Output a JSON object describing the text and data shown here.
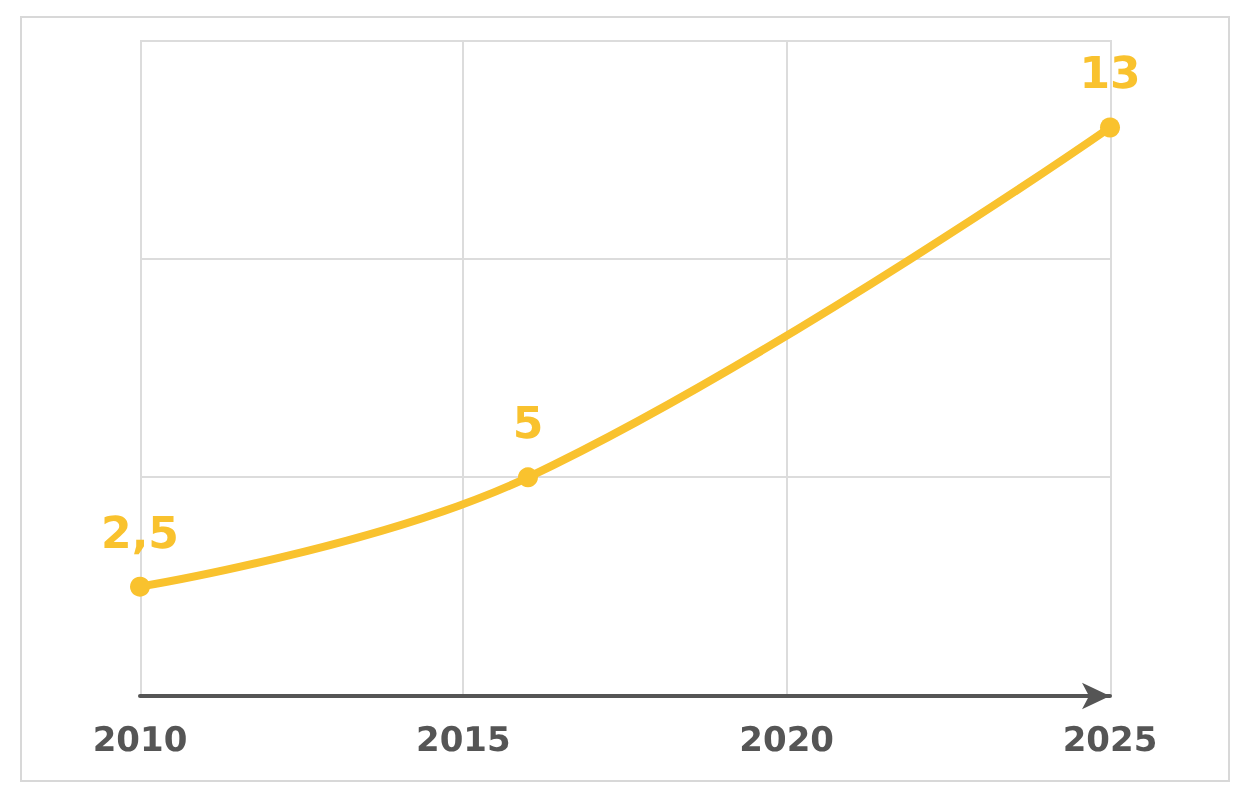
{
  "chart_data": {
    "type": "line",
    "x": [
      2010,
      2016,
      2025
    ],
    "series": [
      {
        "color": "#f9c22e",
        "values": [
          2.5,
          5,
          13
        ],
        "value_labels": [
          "2,5",
          "5",
          "13"
        ]
      }
    ],
    "xlim": [
      2010,
      2025
    ],
    "xticks": [
      2010,
      2015,
      2020,
      2025
    ],
    "ylim": [
      0,
      15
    ],
    "yticks": [
      {
        "value": 5,
        "label": null
      },
      {
        "value": 10,
        "label": null
      },
      {
        "value": 15,
        "label": null
      }
    ],
    "tick_labels": "x",
    "grid": true,
    "marker": "circle",
    "line_style": "solid"
  }
}
